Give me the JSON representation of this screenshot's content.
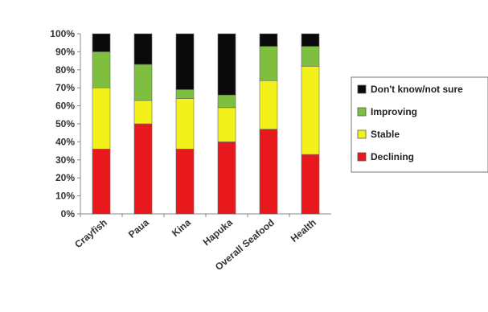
{
  "chart_data": {
    "type": "bar",
    "stacked": true,
    "percent": true,
    "categories": [
      "Crayfish",
      "Paua",
      "Kina",
      "Hapuka",
      "Overall Seafood",
      "Health"
    ],
    "series": [
      {
        "name": "Declining",
        "color": "#e8191c",
        "values": [
          36,
          50,
          36,
          40,
          47,
          33
        ]
      },
      {
        "name": "Stable",
        "color": "#f2f21a",
        "values": [
          34,
          13,
          28,
          19,
          27,
          49
        ]
      },
      {
        "name": "Improving",
        "color": "#7fbf3f",
        "values": [
          20,
          20,
          5,
          7,
          19,
          11
        ]
      },
      {
        "name": "Don't know/not sure",
        "color": "#0a0a0a",
        "values": [
          10,
          17,
          31,
          34,
          7,
          7
        ]
      }
    ],
    "legend_order": [
      "Don't know/not sure",
      "Improving",
      "Stable",
      "Declining"
    ],
    "ylim": [
      0,
      100
    ],
    "yticks": [
      "0%",
      "10%",
      "20%",
      "30%",
      "40%",
      "50%",
      "60%",
      "70%",
      "80%",
      "90%",
      "100%"
    ],
    "title": "",
    "xlabel": "",
    "ylabel": "",
    "legend_position": "right",
    "grid": false
  }
}
